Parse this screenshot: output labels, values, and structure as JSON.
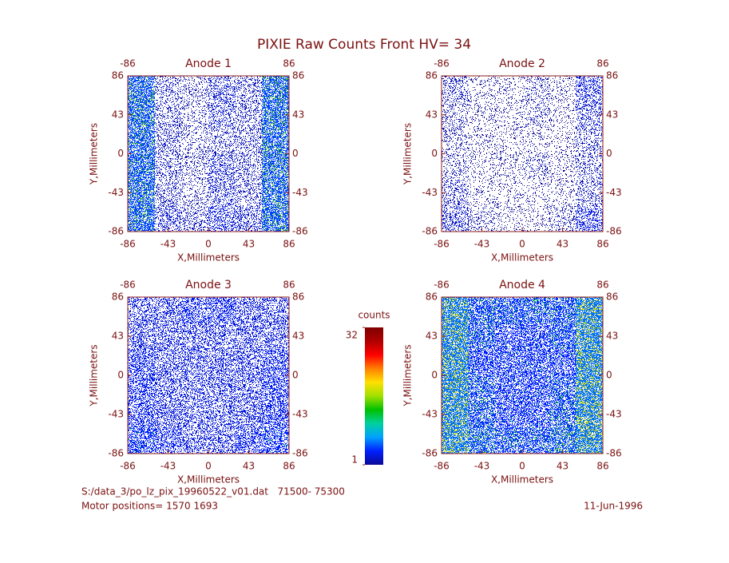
{
  "title": "PIXIE Raw Counts Front HV= 34",
  "chart_data": [
    {
      "type": "heatmap",
      "title": "Anode 1",
      "xlabel": "X,Millimeters",
      "ylabel": "Y,Millimeters",
      "xlim": [
        -86,
        86
      ],
      "ylim": [
        -86,
        86
      ],
      "xticks": [
        -86,
        -43,
        0,
        43,
        86
      ],
      "yticks": [
        -86,
        -43,
        0,
        43,
        86
      ],
      "x2ticks": [
        -86,
        86
      ],
      "y2ticks": [
        -86,
        -43,
        0,
        43,
        86
      ],
      "values": [
        [
          5,
          2,
          1.5,
          2.5,
          2,
          5
        ],
        [
          5,
          2,
          1.5,
          2.5,
          2,
          5
        ],
        [
          5,
          2,
          1.5,
          2,
          2,
          5
        ],
        [
          5,
          2,
          1.5,
          2.5,
          2,
          5
        ],
        [
          5,
          2,
          1.5,
          2.5,
          2,
          5
        ],
        [
          5,
          2.5,
          2,
          3,
          2.5,
          5
        ]
      ]
    },
    {
      "type": "heatmap",
      "title": "Anode 2",
      "xlabel": "X,Millimeters",
      "ylabel": "Y,Millimeters",
      "xlim": [
        -86,
        86
      ],
      "ylim": [
        -86,
        86
      ],
      "xticks": [
        -86,
        -43,
        0,
        43,
        86
      ],
      "yticks": [
        -86,
        -43,
        0,
        43,
        86
      ],
      "x2ticks": [
        -86,
        86
      ],
      "y2ticks": [
        -86,
        -43,
        0,
        43,
        86
      ],
      "values": [
        [
          2,
          1,
          1,
          1.5,
          1,
          3
        ],
        [
          1.5,
          1,
          1,
          1.5,
          1,
          2.5
        ],
        [
          1.5,
          1,
          1,
          1,
          1,
          2
        ],
        [
          1.5,
          1,
          1,
          1.5,
          1,
          2
        ],
        [
          2,
          1,
          1,
          1,
          1,
          2
        ],
        [
          2.5,
          1.5,
          1,
          1,
          1.5,
          3
        ]
      ]
    },
    {
      "type": "heatmap",
      "title": "Anode 3",
      "xlabel": "X,Millimeters",
      "ylabel": "Y,Millimeters",
      "xlim": [
        -86,
        86
      ],
      "ylim": [
        -86,
        86
      ],
      "xticks": [
        -86,
        -43,
        0,
        43,
        86
      ],
      "yticks": [
        -86,
        -43,
        0,
        43,
        86
      ],
      "x2ticks": [
        -86,
        86
      ],
      "y2ticks": [
        -86,
        -43,
        0,
        43,
        86
      ],
      "values": [
        [
          3,
          3,
          3.5,
          3.5,
          3,
          3
        ],
        [
          3,
          3,
          3,
          3,
          3,
          3
        ],
        [
          3.5,
          3,
          3,
          3,
          3,
          3.5
        ],
        [
          3.5,
          3,
          3,
          3,
          3,
          3.5
        ],
        [
          3.5,
          3,
          3,
          3,
          3,
          3.5
        ],
        [
          4,
          3.5,
          3,
          3,
          3.5,
          4
        ]
      ]
    },
    {
      "type": "heatmap",
      "title": "Anode 4",
      "xlabel": "X,Millimeters",
      "ylabel": "Y,Millimeters",
      "xlim": [
        -86,
        86
      ],
      "ylim": [
        -86,
        86
      ],
      "xticks": [
        -86,
        -43,
        0,
        43,
        86
      ],
      "yticks": [
        -86,
        -43,
        0,
        43,
        86
      ],
      "x2ticks": [
        -86,
        86
      ],
      "y2ticks": [
        -86,
        -43,
        0,
        43,
        86
      ],
      "values": [
        [
          6,
          4.5,
          4.5,
          4.5,
          4.5,
          6
        ],
        [
          6,
          4.5,
          4,
          4,
          4.5,
          6
        ],
        [
          6,
          4,
          4,
          4,
          4,
          6
        ],
        [
          6,
          4.5,
          4,
          4,
          4.5,
          6
        ],
        [
          6,
          4.5,
          4,
          4,
          4.5,
          6
        ],
        [
          6,
          5,
          4.5,
          4.5,
          5,
          6
        ]
      ]
    }
  ],
  "colorbar": {
    "label": "counts",
    "clim": [
      1,
      32
    ],
    "ticks": [
      1,
      32
    ],
    "colors": [
      "#0a0a96",
      "#0020ff",
      "#00a0ff",
      "#00d0a0",
      "#00c000",
      "#a0e000",
      "#ffe000",
      "#ff8000",
      "#ff0000",
      "#b00000",
      "#800000"
    ]
  },
  "footer": {
    "file": "S:/data_3/po_lz_pix_19960522_v01.dat   71500- 75300",
    "motor": "Motor positions= 1570 1693",
    "date": "11-Jun-1996"
  }
}
